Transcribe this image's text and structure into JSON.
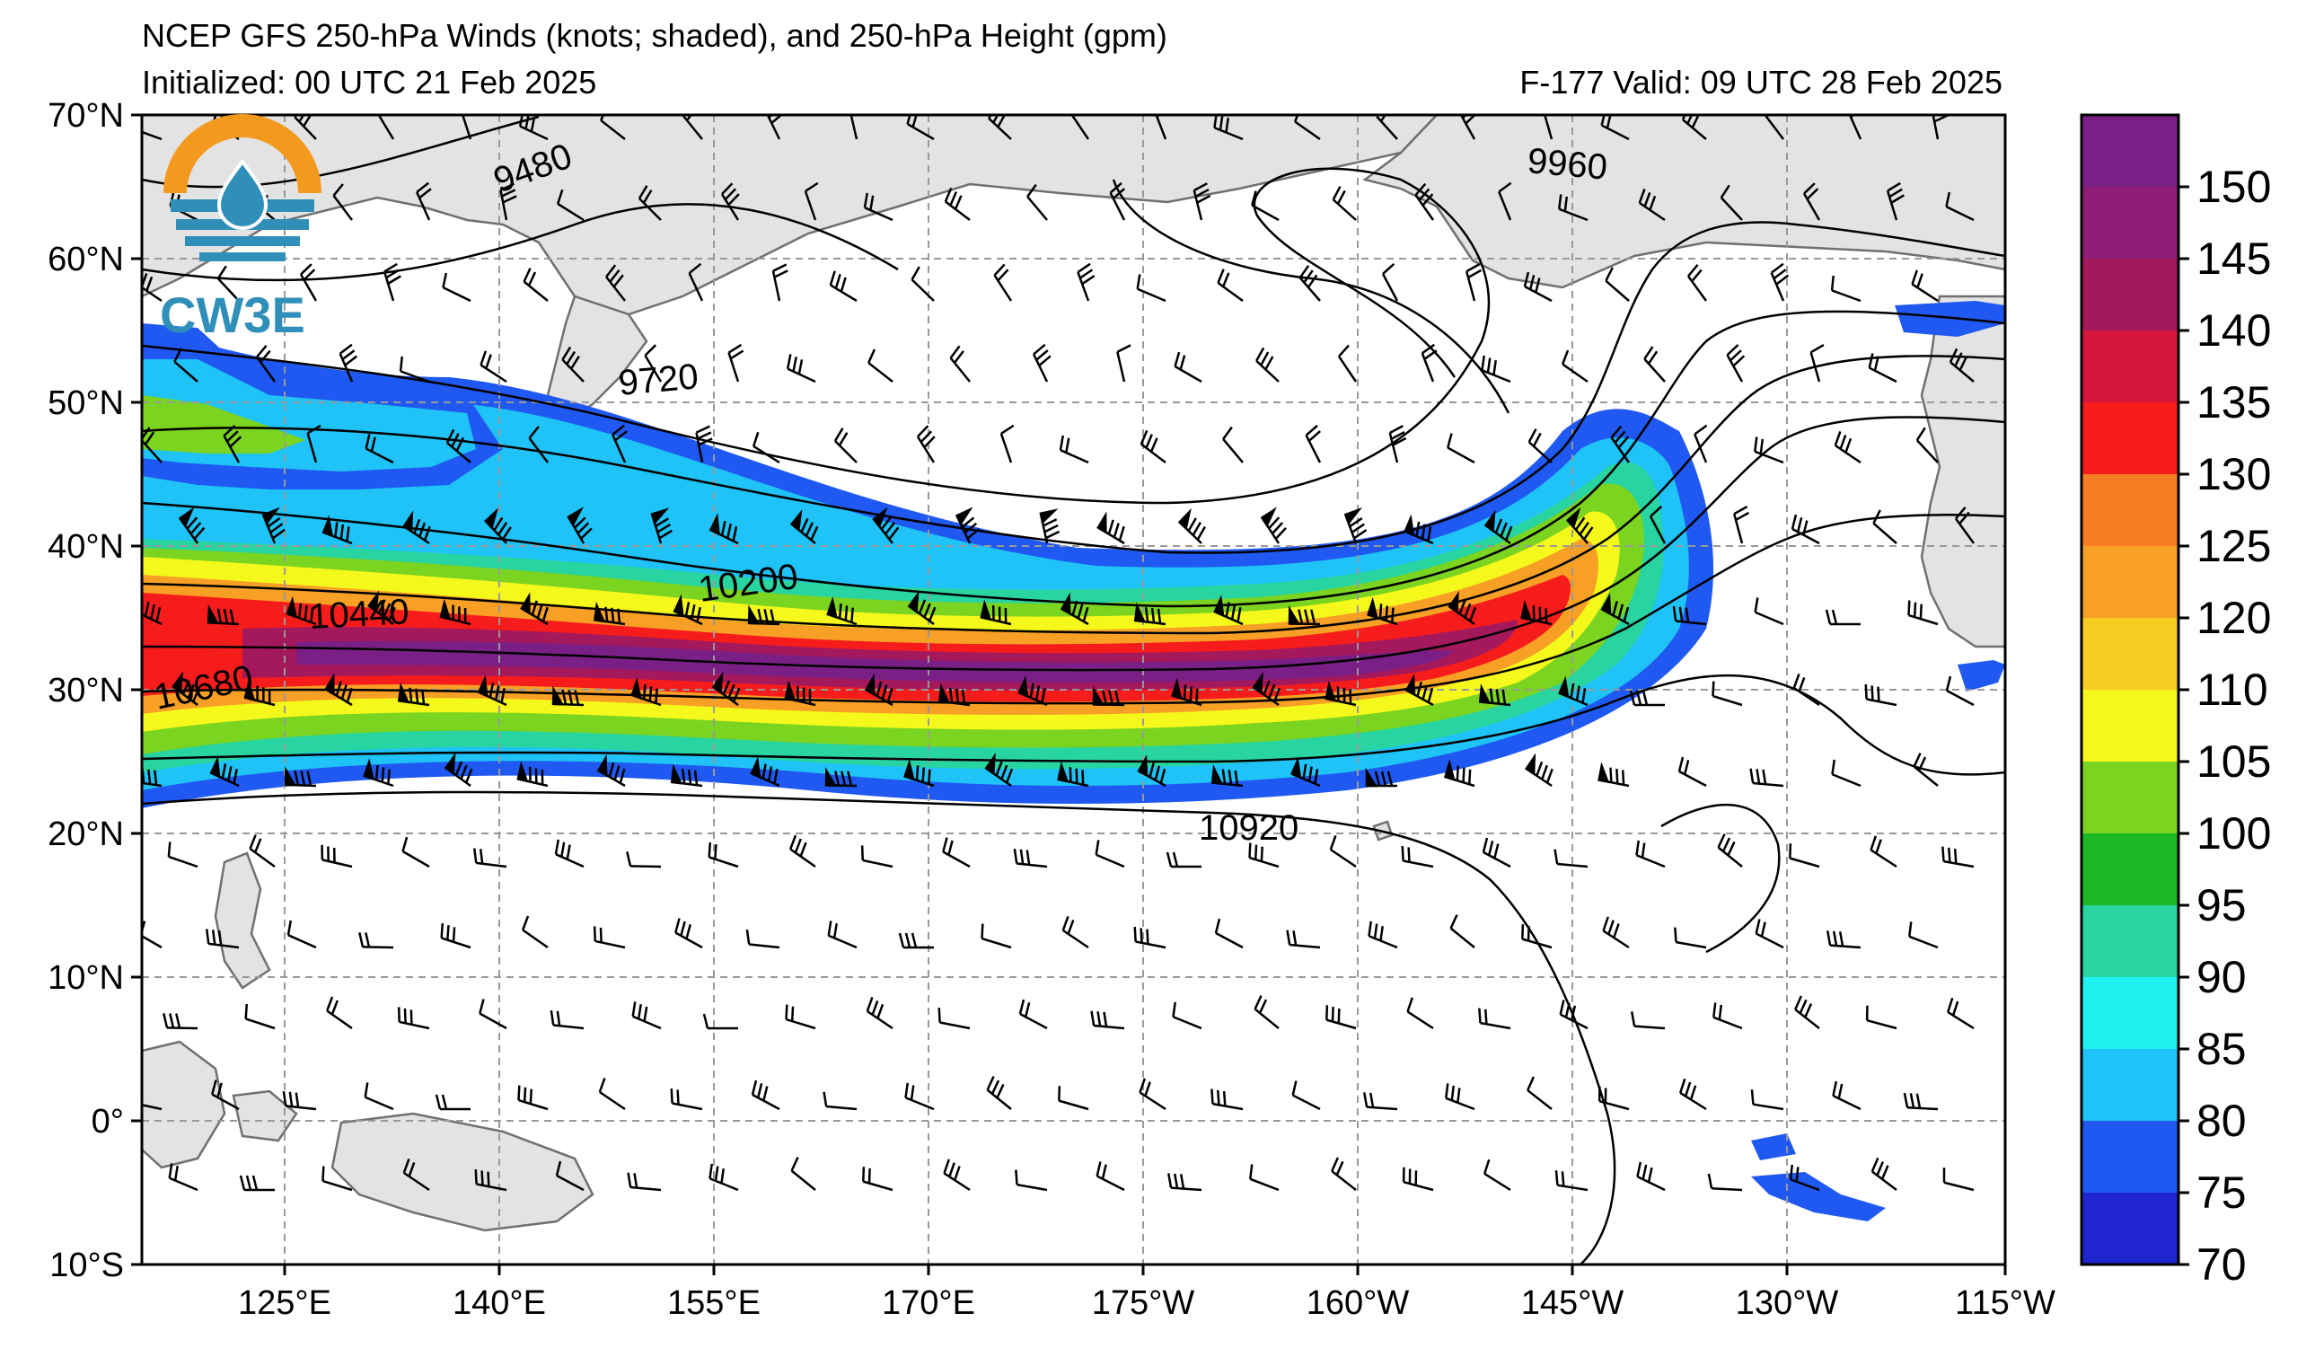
{
  "title": {
    "line1": "NCEP GFS 250-hPa Winds (knots; shaded), and 250-hPa Height (gpm)",
    "line2": "Initialized: 00 UTC 21 Feb 2025",
    "right": "F-177  Valid: 09 UTC 28 Feb 2025"
  },
  "logo": {
    "text": "CW3E",
    "colors": {
      "orange": "#f39a1e",
      "blue": "#2f8fb8"
    }
  },
  "map": {
    "lat_labels": [
      "70°N",
      "60°N",
      "50°N",
      "40°N",
      "30°N",
      "20°N",
      "10°N",
      "0°",
      "10°S"
    ],
    "lon_labels": [
      "125°E",
      "140°E",
      "155°E",
      "170°E",
      "175°W",
      "160°W",
      "145°W",
      "130°W",
      "115°W"
    ],
    "contour_labels": [
      "9480",
      "9720",
      "9960",
      "10200",
      "10440",
      "10680",
      "10920"
    ],
    "land_color": "#e3e3e3",
    "coast_color": "#707070",
    "grid": true
  },
  "colorbar": {
    "labels": [
      "150",
      "145",
      "140",
      "135",
      "130",
      "125",
      "120",
      "110",
      "105",
      "100",
      "95",
      "90",
      "85",
      "80",
      "75",
      "70"
    ],
    "colors": [
      "#7a1f86",
      "#8e1d78",
      "#a4195c",
      "#d5173c",
      "#f71c1c",
      "#f77c22",
      "#f7a025",
      "#f7cc21",
      "#f5f91b",
      "#7bd41f",
      "#1db826",
      "#28d4a0",
      "#1ff1f1",
      "#1fc3f7",
      "#1f59f1",
      "#1f25cf"
    ]
  }
}
